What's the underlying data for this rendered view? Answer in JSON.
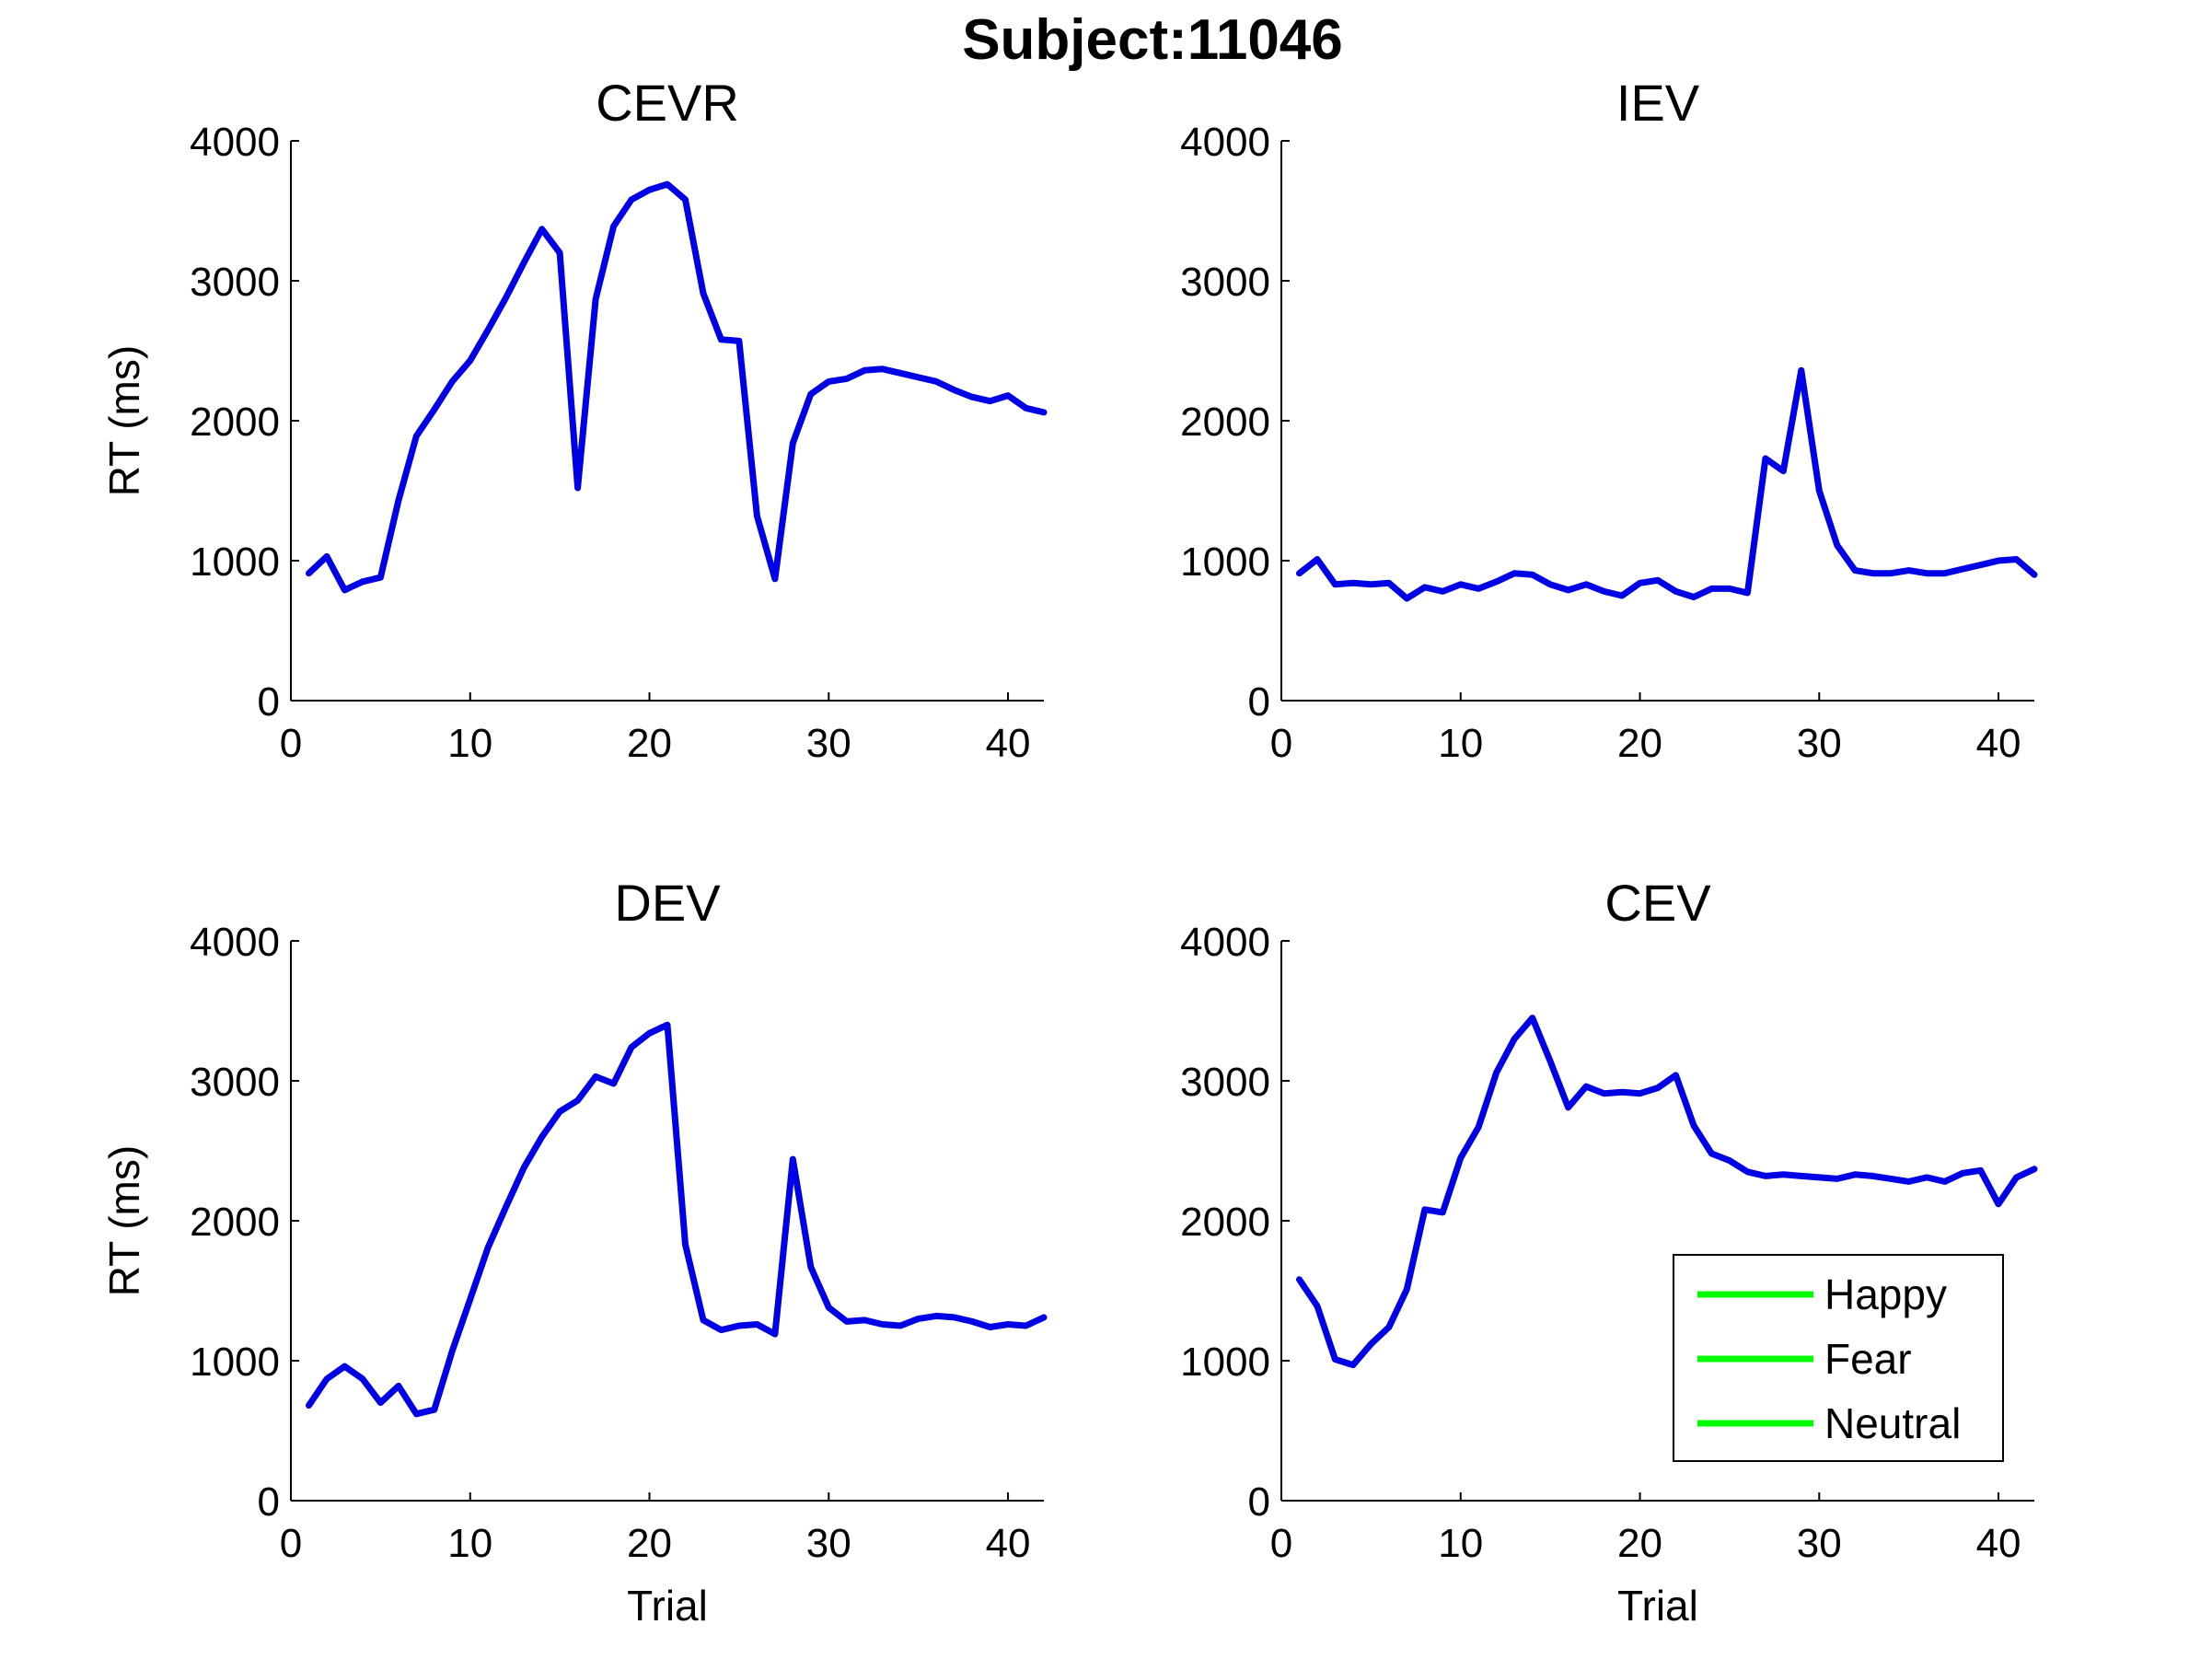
{
  "figure": {
    "title": "Subject:11046"
  },
  "legend": {
    "entries": [
      {
        "label": "Happy",
        "color": "#00ff00"
      },
      {
        "label": "Fear",
        "color": "#00ff00"
      },
      {
        "label": "Neutral",
        "color": "#00ff00"
      }
    ],
    "location": "bottom-right of CEV panel"
  },
  "chart_data": [
    {
      "type": "line",
      "title": "CEVR",
      "xlabel": "",
      "ylabel": "RT (ms)",
      "xlim": [
        0,
        42
      ],
      "ylim": [
        0,
        4000
      ],
      "xticks": [
        0,
        10,
        20,
        30,
        40
      ],
      "yticks": [
        0,
        1000,
        2000,
        3000,
        4000
      ],
      "grid": false,
      "series": [
        {
          "color": "#0000e6",
          "x": [
            1,
            2,
            3,
            4,
            5,
            6,
            7,
            8,
            9,
            10,
            11,
            12,
            13,
            14,
            15,
            16,
            17,
            18,
            19,
            20,
            21,
            22,
            23,
            24,
            25,
            26,
            27,
            28,
            29,
            30,
            31,
            32,
            33,
            34,
            35,
            36,
            37,
            38,
            39,
            40,
            41,
            42
          ],
          "y": [
            910,
            1030,
            790,
            850,
            880,
            1430,
            1890,
            2080,
            2280,
            2430,
            2650,
            2880,
            3130,
            3370,
            3200,
            1520,
            2870,
            3390,
            3580,
            3650,
            3690,
            3580,
            2910,
            2580,
            2570,
            1320,
            870,
            1840,
            2190,
            2280,
            2300,
            2360,
            2370,
            2340,
            2310,
            2280,
            2220,
            2170,
            2140,
            2180,
            2090,
            2060
          ]
        }
      ]
    },
    {
      "type": "line",
      "title": "IEV",
      "xlabel": "",
      "ylabel": "",
      "xlim": [
        0,
        42
      ],
      "ylim": [
        0,
        4000
      ],
      "xticks": [
        0,
        10,
        20,
        30,
        40
      ],
      "yticks": [
        0,
        1000,
        2000,
        3000,
        4000
      ],
      "grid": false,
      "series": [
        {
          "color": "#0000e6",
          "x": [
            1,
            2,
            3,
            4,
            5,
            6,
            7,
            8,
            9,
            10,
            11,
            12,
            13,
            14,
            15,
            16,
            17,
            18,
            19,
            20,
            21,
            22,
            23,
            24,
            25,
            26,
            27,
            28,
            29,
            30,
            31,
            32,
            33,
            34,
            35,
            36,
            37,
            38,
            39,
            40,
            41,
            42
          ],
          "y": [
            910,
            1010,
            830,
            840,
            830,
            840,
            730,
            810,
            780,
            830,
            800,
            850,
            910,
            900,
            830,
            790,
            830,
            780,
            750,
            840,
            860,
            780,
            740,
            800,
            800,
            770,
            1730,
            1640,
            2360,
            1500,
            1110,
            930,
            910,
            910,
            930,
            910,
            910,
            940,
            970,
            1000,
            1010,
            900
          ]
        }
      ]
    },
    {
      "type": "line",
      "title": "DEV",
      "xlabel": "Trial",
      "ylabel": "RT (ms)",
      "xlim": [
        0,
        42
      ],
      "ylim": [
        0,
        4000
      ],
      "xticks": [
        0,
        10,
        20,
        30,
        40
      ],
      "yticks": [
        0,
        1000,
        2000,
        3000,
        4000
      ],
      "grid": false,
      "series": [
        {
          "color": "#0000e6",
          "x": [
            1,
            2,
            3,
            4,
            5,
            6,
            7,
            8,
            9,
            10,
            11,
            12,
            13,
            14,
            15,
            16,
            17,
            18,
            19,
            20,
            21,
            22,
            23,
            24,
            25,
            26,
            27,
            28,
            29,
            30,
            31,
            32,
            33,
            34,
            35,
            36,
            37,
            38,
            39,
            40,
            41,
            42
          ],
          "y": [
            680,
            870,
            960,
            870,
            700,
            820,
            620,
            650,
            1070,
            1440,
            1810,
            2100,
            2380,
            2600,
            2780,
            2860,
            3030,
            2980,
            3240,
            3340,
            3400,
            1830,
            1290,
            1220,
            1250,
            1260,
            1190,
            2440,
            1670,
            1380,
            1280,
            1290,
            1260,
            1250,
            1300,
            1320,
            1310,
            1280,
            1240,
            1260,
            1250,
            1310
          ]
        }
      ]
    },
    {
      "type": "line",
      "title": "CEV",
      "xlabel": "Trial",
      "ylabel": "",
      "xlim": [
        0,
        42
      ],
      "ylim": [
        0,
        4000
      ],
      "xticks": [
        0,
        10,
        20,
        30,
        40
      ],
      "yticks": [
        0,
        1000,
        2000,
        3000,
        4000
      ],
      "grid": false,
      "series": [
        {
          "color": "#0000e6",
          "x": [
            1,
            2,
            3,
            4,
            5,
            6,
            7,
            8,
            9,
            10,
            11,
            12,
            13,
            14,
            15,
            16,
            17,
            18,
            19,
            20,
            21,
            22,
            23,
            24,
            25,
            26,
            27,
            28,
            29,
            30,
            31,
            32,
            33,
            34,
            35,
            36,
            37,
            38,
            39,
            40,
            41,
            42
          ],
          "y": [
            1580,
            1390,
            1010,
            970,
            1120,
            1240,
            1510,
            2080,
            2060,
            2450,
            2670,
            3060,
            3300,
            3450,
            3140,
            2810,
            2960,
            2910,
            2920,
            2910,
            2950,
            3040,
            2680,
            2480,
            2430,
            2350,
            2320,
            2330,
            2320,
            2310,
            2300,
            2330,
            2320,
            2300,
            2280,
            2310,
            2280,
            2340,
            2360,
            2120,
            2310,
            2370
          ]
        }
      ]
    }
  ]
}
